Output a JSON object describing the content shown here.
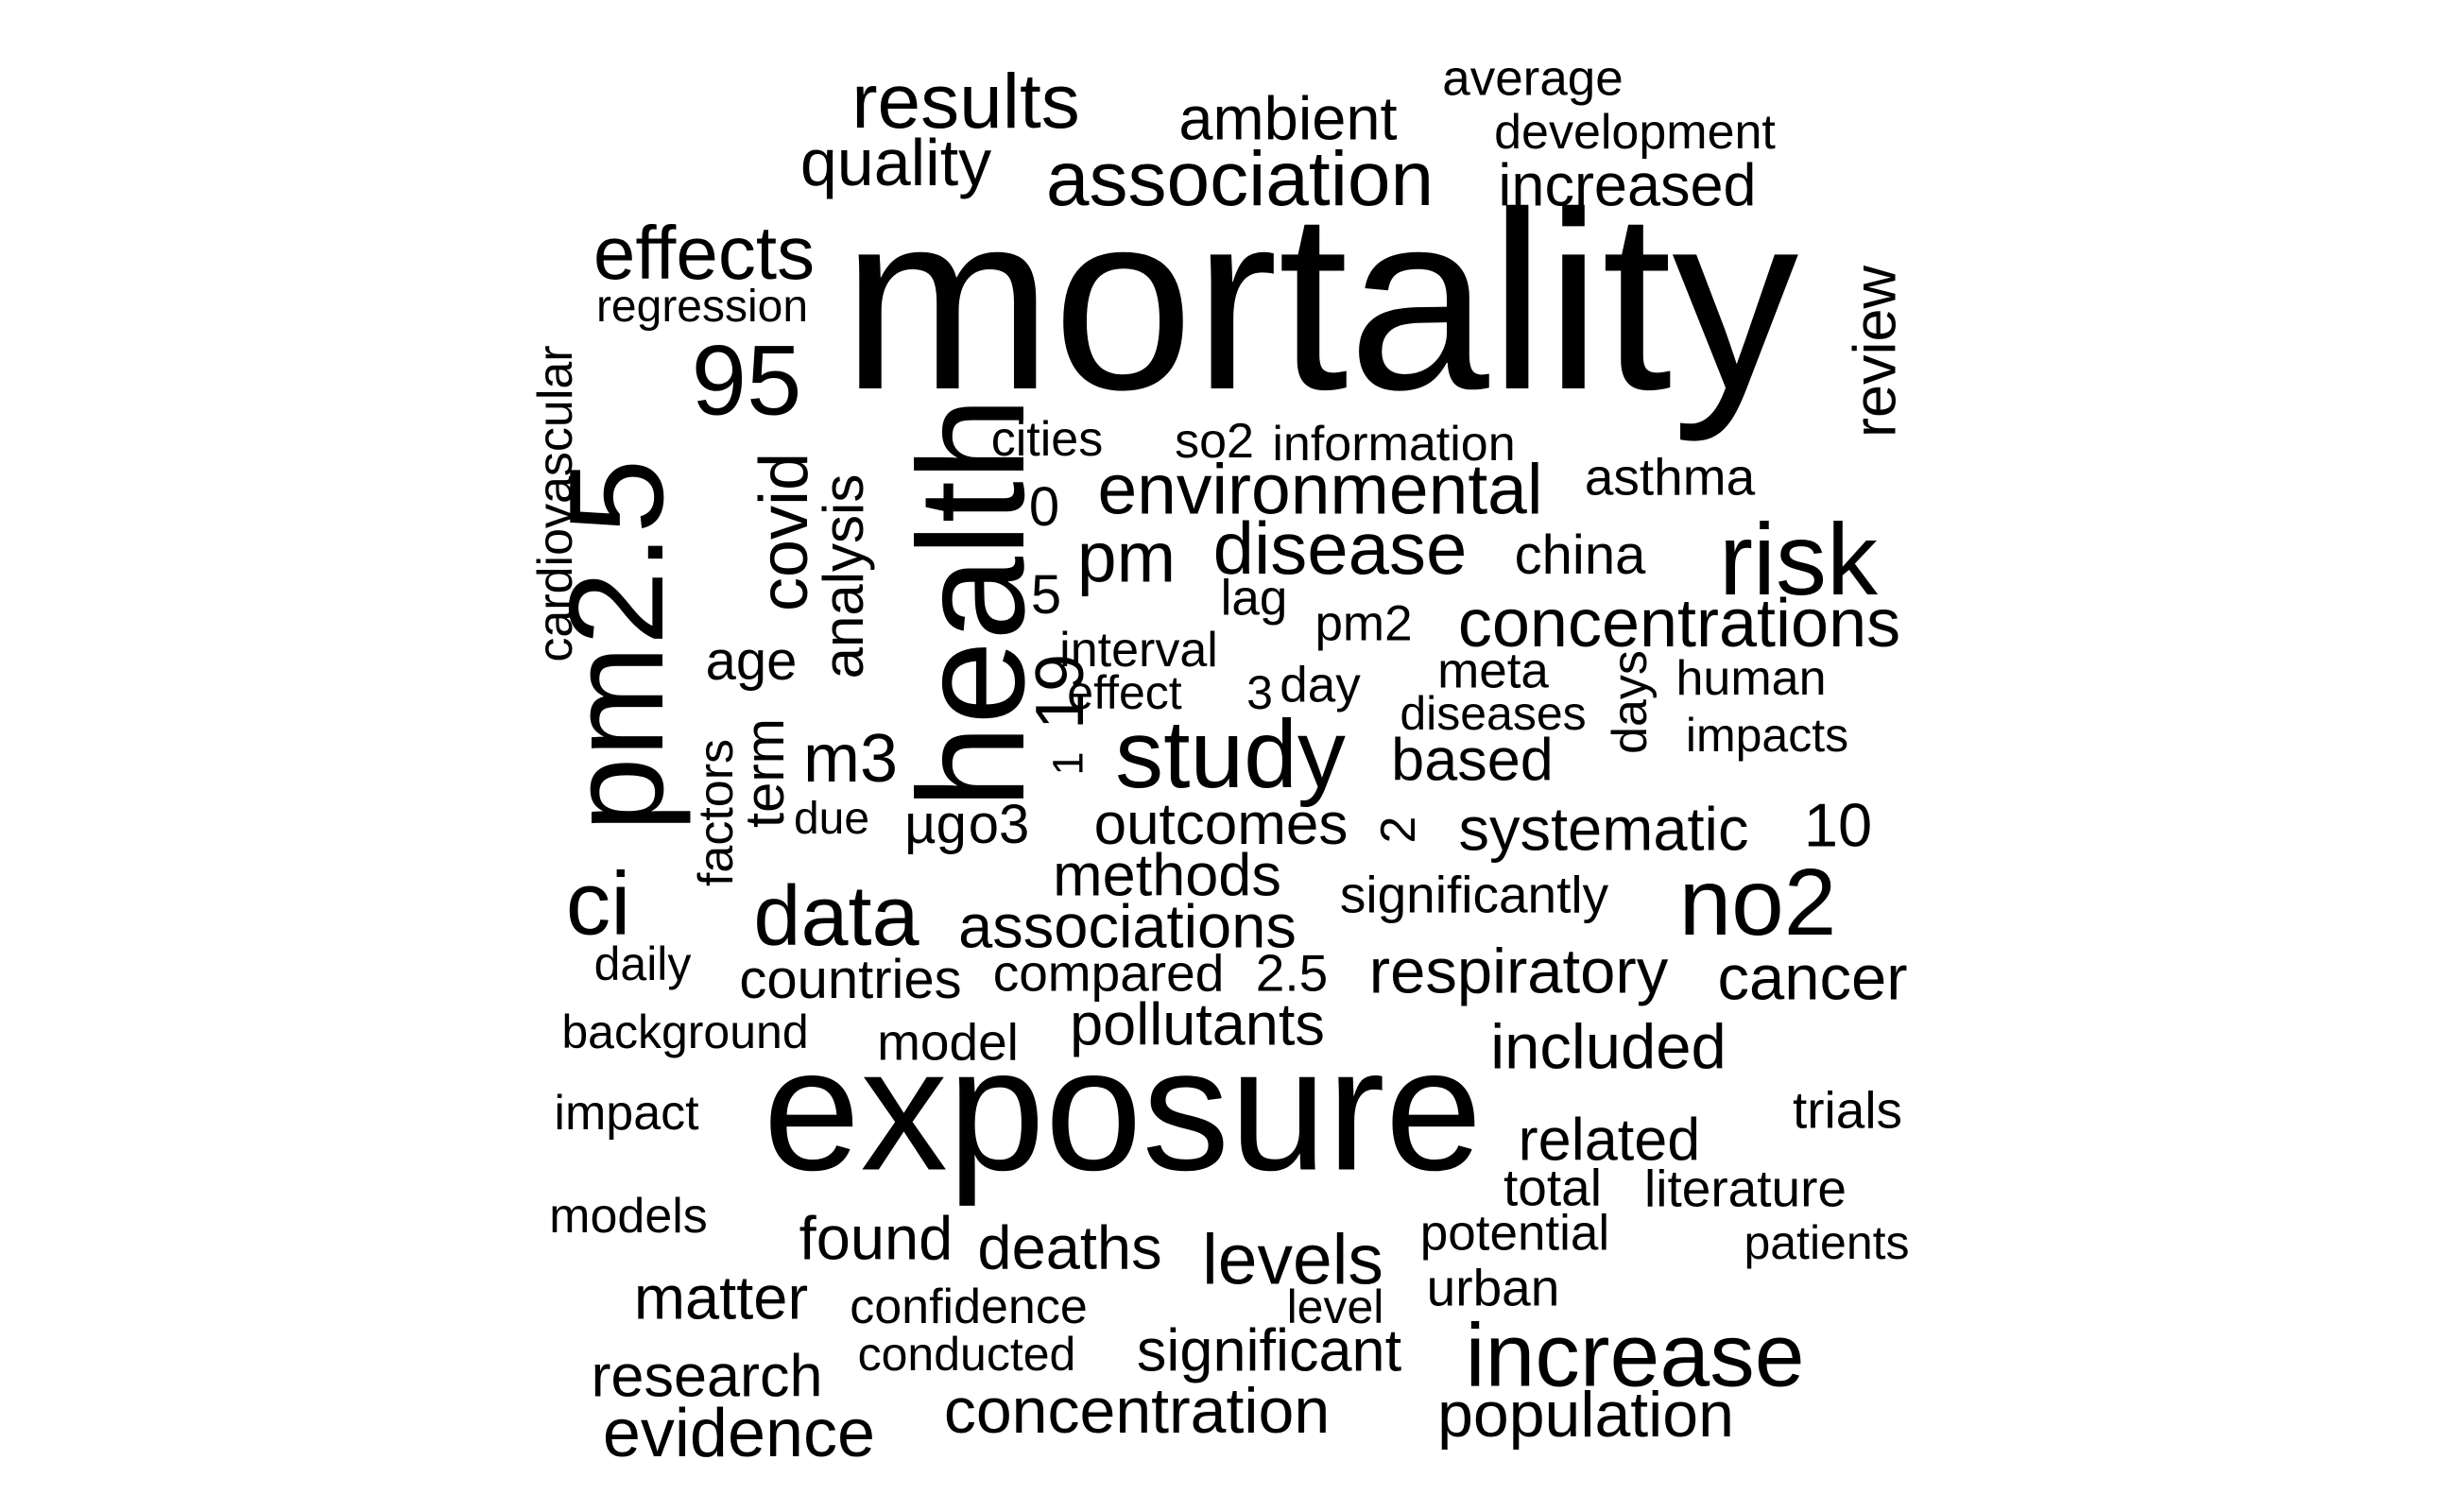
{
  "word_cloud": {
    "text_color": "#000000",
    "background_color": "#ffffff",
    "words": [
      {
        "text": "mortality",
        "vertical": false
      },
      {
        "text": "exposure",
        "vertical": false
      },
      {
        "text": "health",
        "vertical": true
      },
      {
        "text": "pm2.5",
        "vertical": true
      },
      {
        "text": "risk",
        "vertical": false
      },
      {
        "text": "study",
        "vertical": false
      },
      {
        "text": "increase",
        "vertical": false
      },
      {
        "text": "no2",
        "vertical": false
      },
      {
        "text": "95",
        "vertical": false
      },
      {
        "text": "ci",
        "vertical": false
      },
      {
        "text": "data",
        "vertical": false
      },
      {
        "text": "association",
        "vertical": false
      },
      {
        "text": "results",
        "vertical": false
      },
      {
        "text": "effects",
        "vertical": false
      },
      {
        "text": "covid",
        "vertical": true
      },
      {
        "text": "analysis",
        "vertical": true
      },
      {
        "text": "disease",
        "vertical": false
      },
      {
        "text": "environmental",
        "vertical": false
      },
      {
        "text": "concentrations",
        "vertical": false
      },
      {
        "text": "pm",
        "vertical": false
      },
      {
        "text": "review",
        "vertical": true
      },
      {
        "text": "19",
        "vertical": true
      },
      {
        "text": "m3",
        "vertical": false
      },
      {
        "text": "quality",
        "vertical": false
      },
      {
        "text": "ambient",
        "vertical": false
      },
      {
        "text": "evidence",
        "vertical": false
      },
      {
        "text": "levels",
        "vertical": false
      },
      {
        "text": "concentration",
        "vertical": false
      },
      {
        "text": "population",
        "vertical": false
      },
      {
        "text": "respiratory",
        "vertical": false
      },
      {
        "text": "associations",
        "vertical": false
      },
      {
        "text": "methods",
        "vertical": false
      },
      {
        "text": "cancer",
        "vertical": false
      },
      {
        "text": "included",
        "vertical": false
      },
      {
        "text": "systematic",
        "vertical": false
      },
      {
        "text": "outcomes",
        "vertical": false
      },
      {
        "text": "based",
        "vertical": false
      },
      {
        "text": "significant",
        "vertical": false
      },
      {
        "text": "deaths",
        "vertical": false
      },
      {
        "text": "found",
        "vertical": false
      },
      {
        "text": "matter",
        "vertical": false
      },
      {
        "text": "related",
        "vertical": false
      },
      {
        "text": "research",
        "vertical": false
      },
      {
        "text": "pollutants",
        "vertical": false
      },
      {
        "text": "increased",
        "vertical": false
      },
      {
        "text": "10",
        "vertical": false
      },
      {
        "text": "age",
        "vertical": false
      },
      {
        "text": "o3",
        "vertical": false
      },
      {
        "text": "µg",
        "vertical": false
      },
      {
        "text": "countries",
        "vertical": false
      },
      {
        "text": "cardiovascular",
        "vertical": true
      },
      {
        "text": "term",
        "vertical": true
      },
      {
        "text": "factors",
        "vertical": true
      },
      {
        "text": "days",
        "vertical": true
      },
      {
        "text": "china",
        "vertical": false
      },
      {
        "text": "asthma",
        "vertical": false
      },
      {
        "text": "model",
        "vertical": false
      },
      {
        "text": "average",
        "vertical": false
      },
      {
        "text": "development",
        "vertical": false
      },
      {
        "text": "regression",
        "vertical": false
      },
      {
        "text": "cities",
        "vertical": false
      },
      {
        "text": "so2",
        "vertical": false
      },
      {
        "text": "information",
        "vertical": false
      },
      {
        "text": "0",
        "vertical": false
      },
      {
        "text": "5",
        "vertical": false
      },
      {
        "text": "lag",
        "vertical": false
      },
      {
        "text": "pm2",
        "vertical": false
      },
      {
        "text": "interval",
        "vertical": false
      },
      {
        "text": "effect",
        "vertical": false
      },
      {
        "text": "3",
        "vertical": false
      },
      {
        "text": "day",
        "vertical": false
      },
      {
        "text": "meta",
        "vertical": false
      },
      {
        "text": "diseases",
        "vertical": false
      },
      {
        "text": "human",
        "vertical": false
      },
      {
        "text": "impacts",
        "vertical": false
      },
      {
        "text": "1",
        "vertical": true
      },
      {
        "text": "due",
        "vertical": false
      },
      {
        "text": "2",
        "vertical": true
      },
      {
        "text": "significantly",
        "vertical": false
      },
      {
        "text": "daily",
        "vertical": false
      },
      {
        "text": "compared",
        "vertical": false
      },
      {
        "text": "2.5",
        "vertical": false
      },
      {
        "text": "background",
        "vertical": false
      },
      {
        "text": "impact",
        "vertical": false
      },
      {
        "text": "trials",
        "vertical": false
      },
      {
        "text": "total",
        "vertical": false
      },
      {
        "text": "literature",
        "vertical": false
      },
      {
        "text": "models",
        "vertical": false
      },
      {
        "text": "potential",
        "vertical": false
      },
      {
        "text": "patients",
        "vertical": false
      },
      {
        "text": "confidence",
        "vertical": false
      },
      {
        "text": "urban",
        "vertical": false
      },
      {
        "text": "level",
        "vertical": false
      },
      {
        "text": "conducted",
        "vertical": false
      }
    ]
  }
}
